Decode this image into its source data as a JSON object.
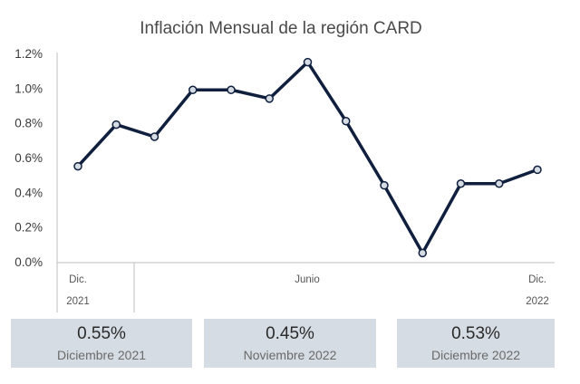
{
  "chart_data": {
    "type": "line",
    "title": "Inflación Mensual de la región CARD",
    "y_ticks": [
      "0.0%",
      "0.2%",
      "0.4%",
      "0.6%",
      "0.8%",
      "1.0%",
      "1.2%"
    ],
    "ylim": [
      0,
      1.2
    ],
    "x_labels": {
      "start_month": "Dic.",
      "start_year": "2021",
      "mid_month": "Junio",
      "end_month": "Dic.",
      "end_year": "2022"
    },
    "values": [
      0.55,
      0.79,
      0.72,
      0.99,
      0.99,
      0.94,
      1.15,
      0.81,
      0.44,
      0.05,
      0.45,
      0.45,
      0.53
    ],
    "line_color": "#0f1f3d",
    "marker_fill": "#d6dce4",
    "grid": false
  },
  "cards": [
    {
      "value": "0.55%",
      "label": "Diciembre 2021"
    },
    {
      "value": "0.45%",
      "label": "Noviembre 2022"
    },
    {
      "value": "0.53%",
      "label": "Diciembre 2022"
    }
  ]
}
